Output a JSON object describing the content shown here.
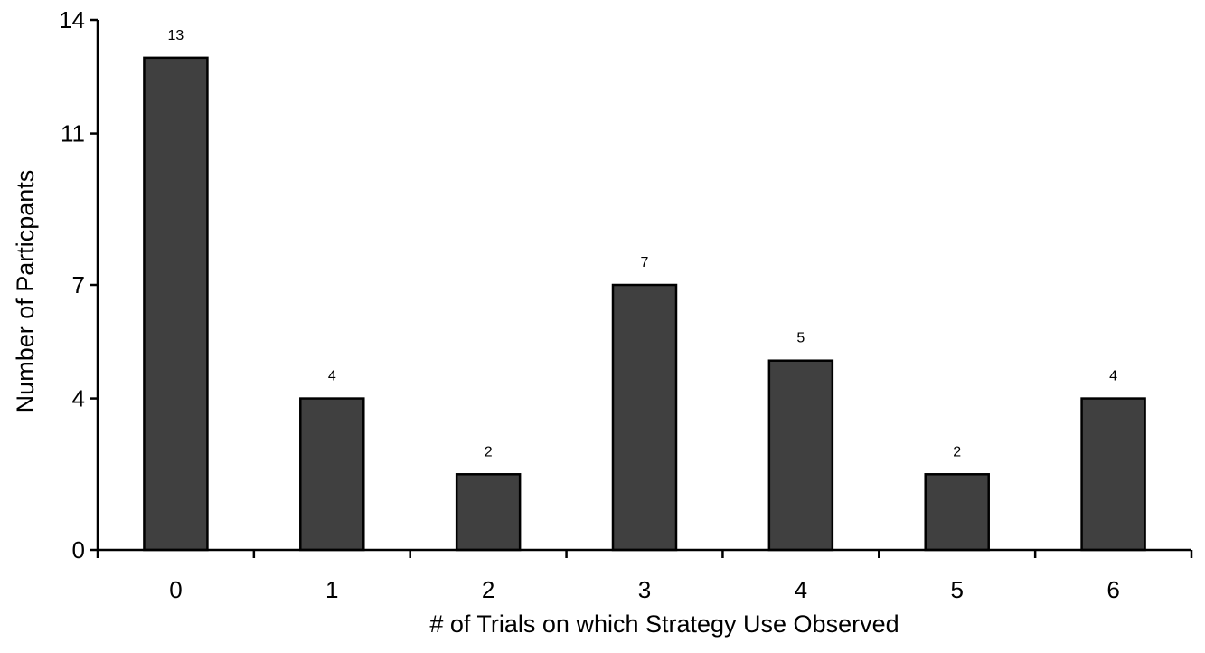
{
  "chart_data": {
    "type": "bar",
    "title": "",
    "xlabel": "# of Trials on which Strategy Use Observed",
    "ylabel": "Number of Particpants",
    "categories": [
      "0",
      "1",
      "2",
      "3",
      "4",
      "5",
      "6"
    ],
    "values": [
      13,
      4,
      2,
      7,
      5,
      2,
      4
    ],
    "data_labels": [
      "13",
      "4",
      "2",
      "7",
      "5",
      "2",
      "4"
    ],
    "y_ticks": [
      0,
      4,
      7,
      11,
      14
    ],
    "y_tick_labels": [
      "0",
      "4",
      "7",
      "11",
      "14"
    ],
    "ylim": [
      0,
      14
    ],
    "grid": false,
    "legend": "none",
    "bar_color": "#404040",
    "bar_edge_color": "#000000"
  }
}
